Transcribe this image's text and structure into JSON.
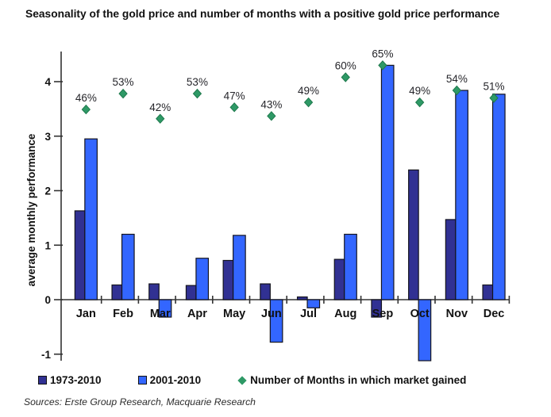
{
  "header": {
    "title": "Seasonality of the gold price and number of months with a positive gold price performance"
  },
  "footer": {
    "sources": "Sources: Erste Group Research, Macquarie Research"
  },
  "chart_data": {
    "type": "bar",
    "title": "Seasonality of the gold price and number of months with a positive gold price performance",
    "xlabel": "",
    "ylabel": "average monthly performance",
    "categories": [
      "Jan",
      "Feb",
      "Mar",
      "Apr",
      "May",
      "Jun",
      "Jul",
      "Aug",
      "Sep",
      "Oct",
      "Nov",
      "Dec"
    ],
    "series": [
      {
        "name": "1973-2010",
        "color": "#313193",
        "values": [
          1.63,
          0.27,
          0.29,
          0.26,
          0.72,
          0.29,
          0.05,
          0.74,
          -0.32,
          2.38,
          1.47,
          0.27
        ]
      },
      {
        "name": "2001-2010",
        "color": "#3366FF",
        "values": [
          2.95,
          1.2,
          -0.32,
          0.76,
          1.18,
          -0.78,
          -0.15,
          1.2,
          4.3,
          -1.12,
          3.84,
          3.77
        ]
      }
    ],
    "markers": {
      "name": "Number of Months in which market gained",
      "color": "#2E9966",
      "labels": [
        "46%",
        "53%",
        "42%",
        "53%",
        "47%",
        "43%",
        "49%",
        "60%",
        "65%",
        "49%",
        "54%",
        "51%"
      ],
      "values_pct": [
        46,
        53,
        42,
        53,
        47,
        43,
        49,
        60,
        65,
        49,
        54,
        51
      ],
      "plot_y": [
        3.49,
        3.78,
        3.32,
        3.78,
        3.53,
        3.37,
        3.62,
        4.08,
        4.3,
        3.62,
        3.84,
        3.7
      ]
    },
    "yticks": [
      -1,
      0,
      1,
      2,
      3,
      4
    ],
    "ylim": [
      -1.15,
      4.57
    ],
    "grid": false,
    "legend_position": "bottom",
    "bar_edge_color": "#14141e",
    "text_color": "#111111"
  }
}
